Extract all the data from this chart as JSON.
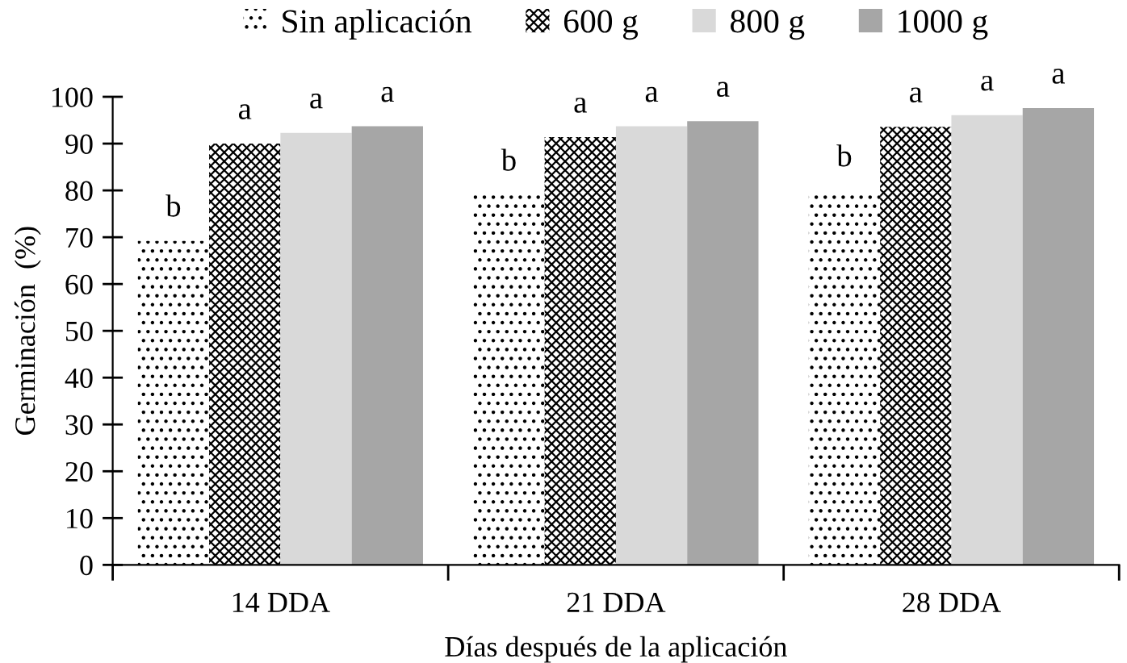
{
  "chart_data": {
    "type": "bar",
    "xlabel": "Días después de la aplicación",
    "ylabel": "Germinación  (%)",
    "categories": [
      "14 DDA",
      "21 DDA",
      "28 DDA"
    ],
    "series": [
      {
        "name": "Sin aplicación",
        "color": "#ffffff",
        "values": [
          69.2,
          79.0,
          79.9
        ],
        "value_labels": [
          "b",
          "b",
          "b"
        ]
      },
      {
        "name": "600 g",
        "color": "#ffffff",
        "values": [
          90.0,
          91.4,
          93.6
        ],
        "value_labels": [
          "a",
          "a",
          "a"
        ]
      },
      {
        "name": "800 g",
        "color": "#d9d9d9",
        "values": [
          92.3,
          93.7,
          96.1
        ],
        "value_labels": [
          "a",
          "a",
          "a"
        ]
      },
      {
        "name": "1000 g",
        "color": "#a6a6a6",
        "values": [
          93.7,
          94.8,
          97.6
        ],
        "value_labels": [
          "a",
          "a",
          "a"
        ]
      }
    ],
    "ylim": [
      0,
      100
    ],
    "yticks": [
      0,
      10,
      20,
      30,
      40,
      50,
      60,
      70,
      80,
      90,
      100
    ],
    "grid": false,
    "legend": "top"
  }
}
